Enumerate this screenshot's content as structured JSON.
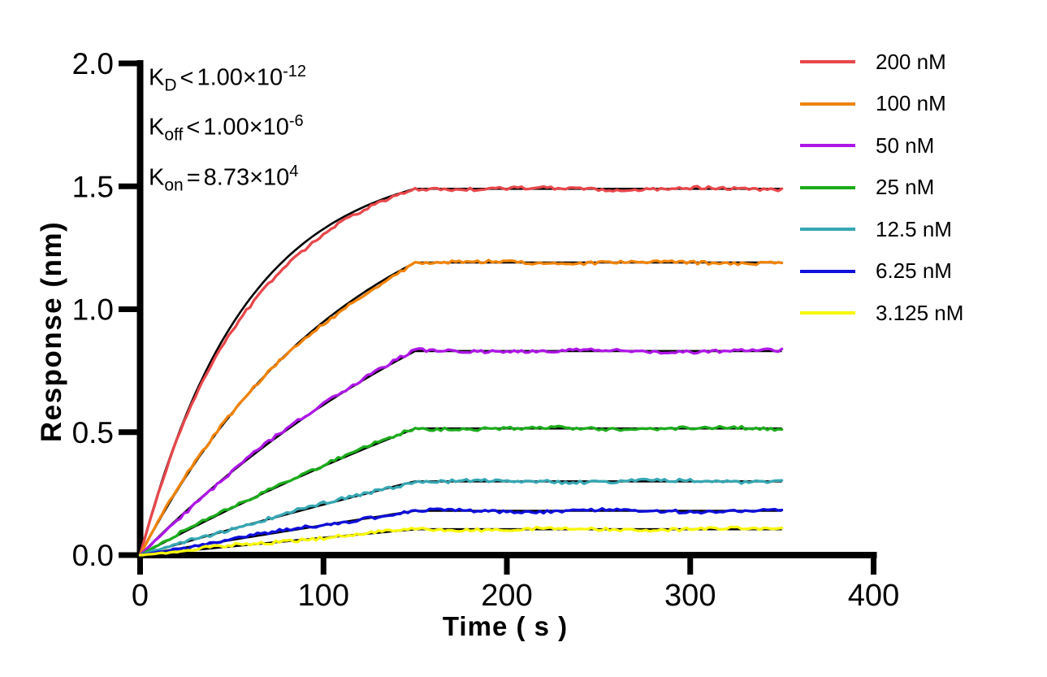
{
  "figure": {
    "background": "#ffffff",
    "axis_color": "#000000",
    "x_axis": {
      "title": "Time ( s )",
      "tick_labels": [
        "0",
        "100",
        "200",
        "300",
        "400"
      ]
    },
    "y_axis": {
      "title": "Response (nm)",
      "tick_labels": [
        "0.0",
        "0.5",
        "1.0",
        "1.5",
        "2.0"
      ]
    },
    "annotations": [
      {
        "base": "K",
        "sub": "D",
        "op": "<",
        "mantissa": "1.00×10",
        "exponent": "-12"
      },
      {
        "base": "K",
        "sub": "off",
        "op": "<",
        "mantissa": "1.00×10",
        "exponent": "-6"
      },
      {
        "base": "K",
        "sub": "on",
        "op": "=",
        "mantissa": "8.73×10",
        "exponent": "4"
      }
    ]
  },
  "chart_data": {
    "type": "line",
    "title": "",
    "xlabel": "Time ( s )",
    "ylabel": "Response (nm)",
    "xlim": [
      0,
      400
    ],
    "ylim": [
      0,
      2
    ],
    "x_ticks": [
      0,
      100,
      200,
      300,
      400
    ],
    "y_ticks": [
      0,
      0.5,
      1.0,
      1.5,
      2.0
    ],
    "grid": false,
    "legend_position": "right",
    "association_end_s": 150,
    "trace_end_s": 350,
    "fit_color": "#000000",
    "kinetics_text": {
      "KD": "<1.00×10-12",
      "Koff": "<1.00×10-6",
      "Kon": "=8.73×104"
    },
    "series": [
      {
        "name": "200 nM",
        "concentration_nM": 200,
        "color": "#E8474B",
        "plateau_nm": 1.49,
        "k_obs": 0.01746,
        "fit_bias": [
          -0.028,
          0
        ]
      },
      {
        "name": "100 nM",
        "concentration_nM": 100,
        "color": "#F08307",
        "plateau_nm": 1.19,
        "k_obs": 0.00873,
        "fit_bias": [
          -0.004,
          0.01
        ]
      },
      {
        "name": "50 nM",
        "concentration_nM": 50,
        "color": "#AE16E6",
        "plateau_nm": 0.83,
        "k_obs": 0.004365,
        "fit_bias": [
          0.004,
          -0.006
        ]
      },
      {
        "name": "25 nM",
        "concentration_nM": 25,
        "color": "#1CAC1C",
        "plateau_nm": 0.515,
        "k_obs": 0.002183,
        "fit_bias": [
          0.005,
          0
        ]
      },
      {
        "name": "12.5 nM",
        "concentration_nM": 12.5,
        "color": "#36A7B3",
        "plateau_nm": 0.3,
        "k_obs": 0.001091,
        "fit_bias": [
          0.003,
          0
        ]
      },
      {
        "name": "6.25 nM",
        "concentration_nM": 6.25,
        "color": "#0F0FDC",
        "plateau_nm": 0.18,
        "k_obs": 0.000546,
        "fit_bias": [
          0.003,
          0
        ]
      },
      {
        "name": "3.125 nM",
        "concentration_nM": 3.125,
        "color": "#F7F70A",
        "plateau_nm": 0.105,
        "k_obs": 0.000273,
        "fit_bias": [
          0.002,
          0
        ]
      }
    ]
  }
}
